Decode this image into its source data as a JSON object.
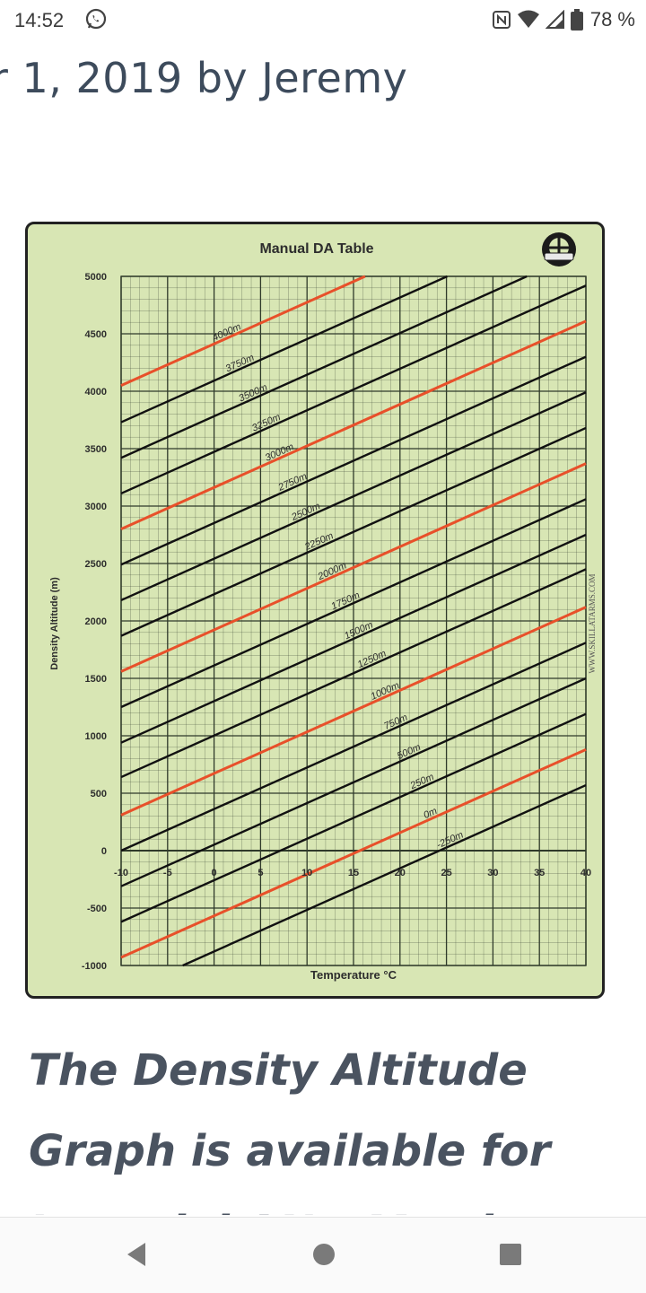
{
  "status_bar": {
    "time": "14:52",
    "battery": "78 %",
    "icons": [
      "whatsapp-icon",
      "nfc-icon",
      "wifi-icon",
      "signal-icon",
      "battery-icon"
    ]
  },
  "article": {
    "byline": "r 1, 2019 by Jeremy",
    "headline": "The Density Altitude Graph is available for Imperial AND Metric Users"
  },
  "chart_data": {
    "type": "line",
    "title": "Manual DA Table",
    "xlabel": "Temperature °C",
    "ylabel": "Density Altitude (m)",
    "watermark": "WWW.SKILLATARMS.COM",
    "xlim": [
      -10,
      40
    ],
    "ylim": [
      -1000,
      5000
    ],
    "x_ticks": [
      "-10",
      "-5",
      "0",
      "5",
      "10",
      "15",
      "20",
      "25",
      "30",
      "35",
      "40"
    ],
    "y_ticks": [
      "5000",
      "4500",
      "4000",
      "3500",
      "3000",
      "2500",
      "2000",
      "1500",
      "1000",
      "500",
      "0",
      "-500",
      "-1000"
    ],
    "slope_m_per_degC": 36.2,
    "series": [
      {
        "name": "4000m",
        "y_at_minus10": 4050,
        "color": "#e8502a"
      },
      {
        "name": "3750m",
        "y_at_minus10": 3730,
        "color": "#111111"
      },
      {
        "name": "3500m",
        "y_at_minus10": 3420,
        "color": "#111111"
      },
      {
        "name": "3250m",
        "y_at_minus10": 3110,
        "color": "#111111"
      },
      {
        "name": "3000m",
        "y_at_minus10": 2800,
        "color": "#e8502a"
      },
      {
        "name": "2750m",
        "y_at_minus10": 2490,
        "color": "#111111"
      },
      {
        "name": "2500m",
        "y_at_minus10": 2180,
        "color": "#111111"
      },
      {
        "name": "2250m",
        "y_at_minus10": 1870,
        "color": "#111111"
      },
      {
        "name": "2000m",
        "y_at_minus10": 1560,
        "color": "#e8502a"
      },
      {
        "name": "1750m",
        "y_at_minus10": 1250,
        "color": "#111111"
      },
      {
        "name": "1500m",
        "y_at_minus10": 940,
        "color": "#111111"
      },
      {
        "name": "1250m",
        "y_at_minus10": 640,
        "color": "#111111"
      },
      {
        "name": "1000m",
        "y_at_minus10": 310,
        "color": "#e8502a"
      },
      {
        "name": "750m",
        "y_at_minus10": 0,
        "color": "#111111"
      },
      {
        "name": "500m",
        "y_at_minus10": -310,
        "color": "#111111"
      },
      {
        "name": "250m",
        "y_at_minus10": -620,
        "color": "#111111"
      },
      {
        "name": "0m",
        "y_at_minus10": -930,
        "color": "#e8502a"
      },
      {
        "name": "-250m",
        "y_at_minus10": -1240,
        "color": "#111111"
      }
    ],
    "colors": {
      "background": "#d8e6b4",
      "grid": "#2f3a2a",
      "highlight": "#e8502a",
      "line": "#111111"
    }
  }
}
